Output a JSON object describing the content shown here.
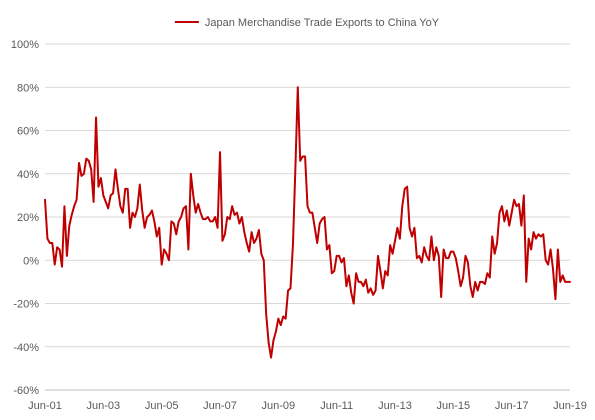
{
  "chart_data": {
    "type": "line",
    "title": "",
    "xlabel": "",
    "ylabel": "",
    "ylim": [
      -60,
      100
    ],
    "y_ticks": [
      -60,
      -40,
      -20,
      0,
      20,
      40,
      60,
      80,
      100
    ],
    "y_tick_labels": [
      "-60%",
      "-40%",
      "-20%",
      "0%",
      "20%",
      "40%",
      "60%",
      "80%",
      "100%"
    ],
    "x_tick_labels": [
      "Jun-01",
      "Jun-03",
      "Jun-05",
      "Jun-07",
      "Jun-09",
      "Jun-11",
      "Jun-13",
      "Jun-15",
      "Jun-17",
      "Jun-19"
    ],
    "x_range": [
      "2001-06",
      "2019-06"
    ],
    "grid": "horizontal",
    "legend_position": "top-center",
    "series": [
      {
        "name": "Japan Merchandise Trade Exports to China YoY",
        "color": "#c00000",
        "points": [
          [
            "2001-06",
            28
          ],
          [
            "2001-07",
            10
          ],
          [
            "2001-08",
            8
          ],
          [
            "2001-09",
            8
          ],
          [
            "2001-10",
            -2
          ],
          [
            "2001-11",
            6
          ],
          [
            "2001-12",
            5
          ],
          [
            "2002-01",
            -3
          ],
          [
            "2002-02",
            25
          ],
          [
            "2002-03",
            2
          ],
          [
            "2002-04",
            16
          ],
          [
            "2002-05",
            21
          ],
          [
            "2002-06",
            25
          ],
          [
            "2002-07",
            28
          ],
          [
            "2002-08",
            45
          ],
          [
            "2002-09",
            39
          ],
          [
            "2002-10",
            40
          ],
          [
            "2002-11",
            47
          ],
          [
            "2002-12",
            46
          ],
          [
            "2003-01",
            42
          ],
          [
            "2003-02",
            27
          ],
          [
            "2003-03",
            66
          ],
          [
            "2003-04",
            34
          ],
          [
            "2003-05",
            38
          ],
          [
            "2003-06",
            30
          ],
          [
            "2003-07",
            27
          ],
          [
            "2003-08",
            24
          ],
          [
            "2003-09",
            30
          ],
          [
            "2003-10",
            31
          ],
          [
            "2003-11",
            42
          ],
          [
            "2003-12",
            33
          ],
          [
            "2004-01",
            25
          ],
          [
            "2004-02",
            22
          ],
          [
            "2004-03",
            33
          ],
          [
            "2004-04",
            33
          ],
          [
            "2004-05",
            15
          ],
          [
            "2004-06",
            22
          ],
          [
            "2004-07",
            20
          ],
          [
            "2004-08",
            24
          ],
          [
            "2004-09",
            35
          ],
          [
            "2004-10",
            23
          ],
          [
            "2004-11",
            15
          ],
          [
            "2004-12",
            20
          ],
          [
            "2005-01",
            21
          ],
          [
            "2005-02",
            23
          ],
          [
            "2005-03",
            18
          ],
          [
            "2005-04",
            11
          ],
          [
            "2005-05",
            15
          ],
          [
            "2005-06",
            -2
          ],
          [
            "2005-07",
            5
          ],
          [
            "2005-08",
            3
          ],
          [
            "2005-09",
            0
          ],
          [
            "2005-10",
            18
          ],
          [
            "2005-11",
            17
          ],
          [
            "2005-12",
            12
          ],
          [
            "2006-01",
            18
          ],
          [
            "2006-02",
            20
          ],
          [
            "2006-03",
            24
          ],
          [
            "2006-04",
            25
          ],
          [
            "2006-05",
            5
          ],
          [
            "2006-06",
            40
          ],
          [
            "2006-07",
            30
          ],
          [
            "2006-08",
            22
          ],
          [
            "2006-09",
            26
          ],
          [
            "2006-10",
            22
          ],
          [
            "2006-11",
            19
          ],
          [
            "2006-12",
            19
          ],
          [
            "2007-01",
            20
          ],
          [
            "2007-02",
            18
          ],
          [
            "2007-03",
            18
          ],
          [
            "2007-04",
            20
          ],
          [
            "2007-05",
            15
          ],
          [
            "2007-06",
            50
          ],
          [
            "2007-07",
            9
          ],
          [
            "2007-08",
            12
          ],
          [
            "2007-09",
            20
          ],
          [
            "2007-10",
            19
          ],
          [
            "2007-11",
            25
          ],
          [
            "2007-12",
            21
          ],
          [
            "2008-01",
            22
          ],
          [
            "2008-02",
            17
          ],
          [
            "2008-03",
            20
          ],
          [
            "2008-04",
            13
          ],
          [
            "2008-05",
            8
          ],
          [
            "2008-06",
            4
          ],
          [
            "2008-07",
            13
          ],
          [
            "2008-08",
            8
          ],
          [
            "2008-09",
            10
          ],
          [
            "2008-10",
            14
          ],
          [
            "2008-11",
            3
          ],
          [
            "2008-12",
            0
          ],
          [
            "2009-01",
            -25
          ],
          [
            "2009-02",
            -38
          ],
          [
            "2009-03",
            -45
          ],
          [
            "2009-04",
            -37
          ],
          [
            "2009-05",
            -33
          ],
          [
            "2009-06",
            -27
          ],
          [
            "2009-07",
            -30
          ],
          [
            "2009-08",
            -26
          ],
          [
            "2009-09",
            -27
          ],
          [
            "2009-10",
            -14
          ],
          [
            "2009-11",
            -13
          ],
          [
            "2009-12",
            7
          ],
          [
            "2010-01",
            42
          ],
          [
            "2010-02",
            80
          ],
          [
            "2010-03",
            46
          ],
          [
            "2010-04",
            48
          ],
          [
            "2010-05",
            48
          ],
          [
            "2010-06",
            25
          ],
          [
            "2010-07",
            22
          ],
          [
            "2010-08",
            22
          ],
          [
            "2010-09",
            15
          ],
          [
            "2010-10",
            8
          ],
          [
            "2010-11",
            17
          ],
          [
            "2010-12",
            19
          ],
          [
            "2011-01",
            20
          ],
          [
            "2011-02",
            5
          ],
          [
            "2011-03",
            7
          ],
          [
            "2011-04",
            -6
          ],
          [
            "2011-05",
            -5
          ],
          [
            "2011-06",
            2
          ],
          [
            "2011-07",
            2
          ],
          [
            "2011-08",
            -1
          ],
          [
            "2011-09",
            1
          ],
          [
            "2011-10",
            -12
          ],
          [
            "2011-11",
            -7
          ],
          [
            "2011-12",
            -15
          ],
          [
            "2012-01",
            -20
          ],
          [
            "2012-02",
            -6
          ],
          [
            "2012-03",
            -10
          ],
          [
            "2012-04",
            -10
          ],
          [
            "2012-05",
            -12
          ],
          [
            "2012-06",
            -9
          ],
          [
            "2012-07",
            -15
          ],
          [
            "2012-08",
            -13
          ],
          [
            "2012-09",
            -16
          ],
          [
            "2012-10",
            -14
          ],
          [
            "2012-11",
            2
          ],
          [
            "2012-12",
            -5
          ],
          [
            "2013-01",
            -13
          ],
          [
            "2013-02",
            -5
          ],
          [
            "2013-03",
            -7
          ],
          [
            "2013-04",
            7
          ],
          [
            "2013-05",
            3
          ],
          [
            "2013-06",
            9
          ],
          [
            "2013-07",
            15
          ],
          [
            "2013-08",
            10
          ],
          [
            "2013-09",
            25
          ],
          [
            "2013-10",
            33
          ],
          [
            "2013-11",
            34
          ],
          [
            "2013-12",
            15
          ],
          [
            "2014-01",
            11
          ],
          [
            "2014-02",
            15
          ],
          [
            "2014-03",
            1
          ],
          [
            "2014-04",
            2
          ],
          [
            "2014-05",
            -1
          ],
          [
            "2014-06",
            6
          ],
          [
            "2014-07",
            2
          ],
          [
            "2014-08",
            0
          ],
          [
            "2014-09",
            11
          ],
          [
            "2014-10",
            0
          ],
          [
            "2014-11",
            6
          ],
          [
            "2014-12",
            2
          ],
          [
            "2015-01",
            -17
          ],
          [
            "2015-02",
            5
          ],
          [
            "2015-03",
            1
          ],
          [
            "2015-04",
            1
          ],
          [
            "2015-05",
            4
          ],
          [
            "2015-06",
            4
          ],
          [
            "2015-07",
            1
          ],
          [
            "2015-08",
            -5
          ],
          [
            "2015-09",
            -12
          ],
          [
            "2015-10",
            -8
          ],
          [
            "2015-11",
            2
          ],
          [
            "2015-12",
            -1
          ],
          [
            "2016-01",
            -12
          ],
          [
            "2016-02",
            -17
          ],
          [
            "2016-03",
            -10
          ],
          [
            "2016-04",
            -14
          ],
          [
            "2016-05",
            -10
          ],
          [
            "2016-06",
            -10
          ],
          [
            "2016-07",
            -11
          ],
          [
            "2016-08",
            -6
          ],
          [
            "2016-09",
            -8
          ],
          [
            "2016-10",
            11
          ],
          [
            "2016-11",
            3
          ],
          [
            "2016-12",
            8
          ],
          [
            "2017-01",
            22
          ],
          [
            "2017-02",
            25
          ],
          [
            "2017-03",
            18
          ],
          [
            "2017-04",
            23
          ],
          [
            "2017-05",
            16
          ],
          [
            "2017-06",
            22
          ],
          [
            "2017-07",
            28
          ],
          [
            "2017-08",
            25
          ],
          [
            "2017-09",
            26
          ],
          [
            "2017-10",
            16
          ],
          [
            "2017-11",
            30
          ],
          [
            "2017-12",
            -10
          ],
          [
            "2018-01",
            10
          ],
          [
            "2018-02",
            5
          ],
          [
            "2018-03",
            13
          ],
          [
            "2018-04",
            10
          ],
          [
            "2018-05",
            12
          ],
          [
            "2018-06",
            11
          ],
          [
            "2018-07",
            12
          ],
          [
            "2018-08",
            0
          ],
          [
            "2018-09",
            -2
          ],
          [
            "2018-10",
            5
          ],
          [
            "2018-11",
            -4
          ],
          [
            "2018-12",
            -18
          ],
          [
            "2019-01",
            5
          ],
          [
            "2019-02",
            -10
          ],
          [
            "2019-03",
            -7
          ],
          [
            "2019-04",
            -10
          ],
          [
            "2019-05",
            -10
          ],
          [
            "2019-06",
            -10
          ]
        ]
      }
    ]
  }
}
